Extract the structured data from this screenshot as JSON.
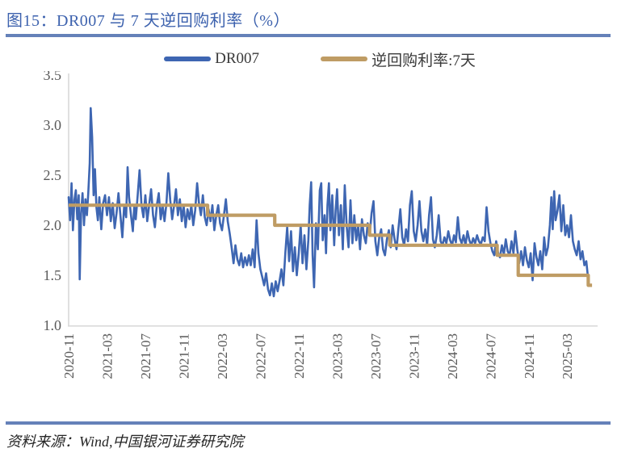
{
  "figure": {
    "title": "图15：DR007 与 7 天逆回购利率（%）",
    "source": "资料来源：Wind,中国银河证券研究院"
  },
  "colors": {
    "title_blue": "#3d62ae",
    "rule_blue": "#6581b9",
    "dr007_blue": "#3e66b2",
    "repo_tan": "#bf9c64",
    "axis_line_gray": "#d9d9d9",
    "tick_label_gray": "#595959"
  },
  "legend": [
    {
      "label": "DR007",
      "color": "#3e66b2"
    },
    {
      "label": "逆回购利率:7天",
      "color": "#bf9c64"
    }
  ],
  "chart_data": {
    "type": "line",
    "title": "DR007 与 7 天逆回购利率（%）",
    "xlabel": "",
    "ylabel": "",
    "grid": false,
    "legend_position": "top",
    "y_axis": {
      "min": 1.0,
      "max": 3.5,
      "ticks": [
        3.5,
        3.0,
        2.5,
        2.0,
        1.5,
        1.0
      ]
    },
    "x_axis": {
      "start": "2020-11",
      "end": "2025-05",
      "tick_labels": [
        "2020-11",
        "2021-03",
        "2021-07",
        "2021-11",
        "2022-03",
        "2022-07",
        "2022-11",
        "2023-03",
        "2023-07",
        "2023-11",
        "2024-03",
        "2024-07",
        "2024-11",
        "2025-03"
      ],
      "tick_month_indices": [
        0,
        4,
        8,
        12,
        16,
        20,
        24,
        28,
        32,
        36,
        40,
        44,
        48,
        52
      ]
    },
    "series": [
      {
        "name": "DR007",
        "color": "#3e66b2",
        "style": "noisy-line",
        "points_month_value": [
          [
            0,
            2.28
          ],
          [
            0.15,
            2.05
          ],
          [
            0.3,
            2.42
          ],
          [
            0.45,
            1.95
          ],
          [
            0.6,
            2.25
          ],
          [
            0.75,
            2.35
          ],
          [
            0.9,
            2.06
          ],
          [
            1.05,
            2.3
          ],
          [
            1.15,
            1.46
          ],
          [
            1.3,
            2.12
          ],
          [
            1.45,
            2.32
          ],
          [
            1.6,
            2.0
          ],
          [
            1.75,
            2.26
          ],
          [
            1.9,
            2.1
          ],
          [
            2.05,
            2.32
          ],
          [
            2.2,
            2.62
          ],
          [
            2.3,
            3.17
          ],
          [
            2.45,
            2.88
          ],
          [
            2.6,
            2.3
          ],
          [
            2.75,
            2.56
          ],
          [
            2.9,
            2.18
          ],
          [
            3.05,
            2.05
          ],
          [
            3.2,
            2.28
          ],
          [
            3.4,
            1.96
          ],
          [
            3.6,
            2.22
          ],
          [
            3.8,
            2.3
          ],
          [
            4.0,
            2.1
          ],
          [
            4.2,
            2.28
          ],
          [
            4.4,
            2.04
          ],
          [
            4.6,
            2.22
          ],
          [
            4.8,
            1.97
          ],
          [
            5.0,
            2.12
          ],
          [
            5.2,
            2.32
          ],
          [
            5.4,
            2.1
          ],
          [
            5.6,
            1.88
          ],
          [
            5.8,
            2.2
          ],
          [
            6.0,
            2.08
          ],
          [
            6.15,
            2.58
          ],
          [
            6.3,
            2.28
          ],
          [
            6.5,
            2.1
          ],
          [
            6.7,
            1.94
          ],
          [
            6.85,
            2.2
          ],
          [
            7.0,
            2.06
          ],
          [
            7.2,
            2.3
          ],
          [
            7.4,
            2.55
          ],
          [
            7.6,
            2.2
          ],
          [
            7.8,
            2.08
          ],
          [
            8.0,
            2.3
          ],
          [
            8.2,
            2.04
          ],
          [
            8.4,
            2.2
          ],
          [
            8.6,
            2.36
          ],
          [
            8.8,
            2.1
          ],
          [
            9.0,
            1.98
          ],
          [
            9.2,
            2.2
          ],
          [
            9.4,
            2.32
          ],
          [
            9.6,
            2.06
          ],
          [
            9.8,
            2.2
          ],
          [
            10.0,
            2.04
          ],
          [
            10.2,
            2.22
          ],
          [
            10.4,
            2.52
          ],
          [
            10.6,
            2.25
          ],
          [
            10.8,
            2.06
          ],
          [
            11.0,
            2.2
          ],
          [
            11.2,
            2.36
          ],
          [
            11.4,
            2.1
          ],
          [
            11.6,
            2.26
          ],
          [
            11.8,
            2.04
          ],
          [
            12.0,
            2.2
          ],
          [
            12.2,
            1.98
          ],
          [
            12.4,
            2.16
          ],
          [
            12.6,
            2.06
          ],
          [
            12.8,
            2.2
          ],
          [
            13.0,
            2.0
          ],
          [
            13.2,
            2.15
          ],
          [
            13.4,
            2.42
          ],
          [
            13.6,
            2.22
          ],
          [
            13.8,
            2.1
          ],
          [
            14.0,
            2.3
          ],
          [
            14.2,
            2.08
          ],
          [
            14.4,
            2.0
          ],
          [
            14.6,
            2.16
          ],
          [
            14.8,
            2.04
          ],
          [
            15.0,
            2.2
          ],
          [
            15.2,
            1.95
          ],
          [
            15.4,
            2.1
          ],
          [
            15.6,
            2.2
          ],
          [
            15.8,
            2.02
          ],
          [
            16.0,
            1.95
          ],
          [
            16.2,
            2.1
          ],
          [
            16.4,
            2.26
          ],
          [
            16.6,
            2.04
          ],
          [
            16.8,
            1.92
          ],
          [
            17.0,
            1.78
          ],
          [
            17.2,
            1.62
          ],
          [
            17.4,
            1.8
          ],
          [
            17.6,
            1.66
          ],
          [
            17.8,
            1.6
          ],
          [
            18.0,
            1.72
          ],
          [
            18.2,
            1.58
          ],
          [
            18.4,
            1.68
          ],
          [
            18.6,
            1.6
          ],
          [
            18.8,
            1.7
          ],
          [
            19.0,
            1.6
          ],
          [
            19.2,
            1.76
          ],
          [
            19.4,
            1.58
          ],
          [
            19.6,
            2.05
          ],
          [
            19.8,
            1.72
          ],
          [
            20.0,
            1.56
          ],
          [
            20.2,
            1.48
          ],
          [
            20.4,
            1.4
          ],
          [
            20.6,
            1.52
          ],
          [
            20.8,
            1.36
          ],
          [
            21.0,
            1.3
          ],
          [
            21.2,
            1.42
          ],
          [
            21.4,
            1.29
          ],
          [
            21.6,
            1.44
          ],
          [
            21.8,
            1.34
          ],
          [
            22.0,
            1.44
          ],
          [
            22.2,
            1.56
          ],
          [
            22.4,
            1.4
          ],
          [
            22.6,
            1.72
          ],
          [
            22.8,
            1.98
          ],
          [
            23.0,
            1.64
          ],
          [
            23.2,
            1.94
          ],
          [
            23.4,
            1.54
          ],
          [
            23.6,
            1.78
          ],
          [
            23.8,
            1.5
          ],
          [
            24.0,
            1.72
          ],
          [
            24.2,
            2.0
          ],
          [
            24.4,
            1.62
          ],
          [
            24.6,
            1.9
          ],
          [
            24.8,
            1.56
          ],
          [
            25.0,
            1.85
          ],
          [
            25.15,
            2.2
          ],
          [
            25.3,
            2.43
          ],
          [
            25.45,
            1.7
          ],
          [
            25.6,
            1.38
          ],
          [
            25.8,
            2.02
          ],
          [
            26.0,
            1.76
          ],
          [
            26.2,
            2.35
          ],
          [
            26.35,
            2.42
          ],
          [
            26.5,
            1.85
          ],
          [
            26.7,
            2.1
          ],
          [
            26.85,
            1.72
          ],
          [
            27.0,
            2.2
          ],
          [
            27.15,
            2.42
          ],
          [
            27.3,
            1.95
          ],
          [
            27.5,
            2.3
          ],
          [
            27.7,
            1.8
          ],
          [
            27.85,
            2.15
          ],
          [
            28.0,
            2.36
          ],
          [
            28.2,
            1.9
          ],
          [
            28.4,
            2.2
          ],
          [
            28.6,
            1.76
          ],
          [
            28.8,
            2.4
          ],
          [
            29.0,
            2.0
          ],
          [
            29.2,
            1.78
          ],
          [
            29.4,
            2.25
          ],
          [
            29.6,
            1.82
          ],
          [
            29.8,
            2.1
          ],
          [
            30.0,
            1.85
          ],
          [
            30.2,
            2.0
          ],
          [
            30.4,
            1.76
          ],
          [
            30.6,
            2.06
          ],
          [
            30.8,
            1.9
          ],
          [
            31.0,
            1.82
          ],
          [
            31.2,
            2.02
          ],
          [
            31.4,
            1.9
          ],
          [
            31.6,
            2.12
          ],
          [
            31.8,
            2.24
          ],
          [
            32.0,
            1.84
          ],
          [
            32.2,
            1.7
          ],
          [
            32.4,
            1.88
          ],
          [
            32.6,
            1.96
          ],
          [
            32.8,
            1.76
          ],
          [
            33.0,
            1.7
          ],
          [
            33.2,
            1.86
          ],
          [
            33.4,
            1.95
          ],
          [
            33.6,
            1.78
          ],
          [
            33.8,
            2.0
          ],
          [
            34.0,
            1.86
          ],
          [
            34.2,
            1.76
          ],
          [
            34.4,
            1.96
          ],
          [
            34.6,
            2.16
          ],
          [
            34.8,
            1.88
          ],
          [
            35.0,
            1.8
          ],
          [
            35.2,
            1.96
          ],
          [
            35.4,
            1.84
          ],
          [
            35.6,
            2.2
          ],
          [
            35.8,
            2.34
          ],
          [
            36.0,
            1.94
          ],
          [
            36.2,
            1.84
          ],
          [
            36.4,
            2.0
          ],
          [
            36.6,
            2.24
          ],
          [
            36.8,
            1.94
          ],
          [
            37.0,
            1.84
          ],
          [
            37.2,
            1.96
          ],
          [
            37.4,
            1.8
          ],
          [
            37.6,
            2.1
          ],
          [
            37.8,
            2.28
          ],
          [
            38.0,
            1.86
          ],
          [
            38.2,
            1.78
          ],
          [
            38.4,
            1.9
          ],
          [
            38.6,
            2.1
          ],
          [
            38.8,
            1.84
          ],
          [
            39.0,
            1.8
          ],
          [
            39.2,
            1.88
          ],
          [
            39.4,
            1.82
          ],
          [
            39.6,
            1.94
          ],
          [
            39.8,
            1.85
          ],
          [
            40.0,
            1.8
          ],
          [
            40.2,
            1.9
          ],
          [
            40.4,
            1.83
          ],
          [
            40.6,
            2.08
          ],
          [
            40.8,
            1.87
          ],
          [
            41.0,
            1.82
          ],
          [
            41.2,
            1.9
          ],
          [
            41.4,
            1.8
          ],
          [
            41.6,
            1.94
          ],
          [
            41.8,
            1.85
          ],
          [
            42.0,
            1.8
          ],
          [
            42.2,
            1.87
          ],
          [
            42.4,
            1.82
          ],
          [
            42.6,
            1.9
          ],
          [
            42.8,
            1.84
          ],
          [
            43.0,
            1.81
          ],
          [
            43.2,
            1.88
          ],
          [
            43.4,
            1.84
          ],
          [
            43.6,
            2.18
          ],
          [
            43.8,
            1.94
          ],
          [
            44.0,
            1.82
          ],
          [
            44.2,
            1.74
          ],
          [
            44.4,
            1.7
          ],
          [
            44.6,
            1.84
          ],
          [
            44.8,
            1.72
          ],
          [
            45.0,
            1.68
          ],
          [
            45.2,
            1.8
          ],
          [
            45.4,
            1.71
          ],
          [
            45.6,
            1.86
          ],
          [
            45.8,
            1.74
          ],
          [
            46.0,
            1.7
          ],
          [
            46.2,
            1.84
          ],
          [
            46.4,
            1.72
          ],
          [
            46.6,
            1.94
          ],
          [
            46.8,
            1.76
          ],
          [
            47.0,
            1.62
          ],
          [
            47.2,
            1.74
          ],
          [
            47.4,
            1.6
          ],
          [
            47.6,
            1.78
          ],
          [
            47.8,
            1.65
          ],
          [
            48.0,
            1.58
          ],
          [
            48.2,
            1.72
          ],
          [
            48.4,
            1.45
          ],
          [
            48.6,
            1.82
          ],
          [
            48.8,
            1.68
          ],
          [
            49.0,
            1.6
          ],
          [
            49.2,
            1.74
          ],
          [
            49.4,
            1.56
          ],
          [
            49.6,
            1.88
          ],
          [
            49.8,
            1.7
          ],
          [
            50.0,
            1.78
          ],
          [
            50.2,
            2.0
          ],
          [
            50.35,
            2.28
          ],
          [
            50.5,
            1.96
          ],
          [
            50.65,
            2.34
          ],
          [
            50.8,
            2.05
          ],
          [
            51.0,
            2.15
          ],
          [
            51.2,
            2.3
          ],
          [
            51.4,
            1.94
          ],
          [
            51.6,
            2.2
          ],
          [
            51.8,
            1.9
          ],
          [
            52.0,
            2.0
          ],
          [
            52.2,
            1.88
          ],
          [
            52.4,
            2.1
          ],
          [
            52.6,
            1.84
          ],
          [
            52.8,
            1.76
          ],
          [
            53.0,
            1.7
          ],
          [
            53.2,
            1.84
          ],
          [
            53.4,
            1.66
          ],
          [
            53.6,
            1.74
          ],
          [
            53.8,
            1.6
          ],
          [
            54.0,
            1.64
          ],
          [
            54.15,
            1.5
          ]
        ]
      },
      {
        "name": "逆回购利率:7天",
        "color": "#bf9c64",
        "style": "step",
        "segments": [
          {
            "rate": 2.2,
            "m0": 0,
            "m1": 14.5,
            "from": "2020-11",
            "to": "2022-01"
          },
          {
            "rate": 2.1,
            "m0": 14.5,
            "m1": 21.5,
            "from": "2022-01",
            "to": "2022-08"
          },
          {
            "rate": 2.0,
            "m0": 21.5,
            "m1": 31.4,
            "from": "2022-08",
            "to": "2023-06"
          },
          {
            "rate": 1.9,
            "m0": 31.4,
            "m1": 33.5,
            "from": "2023-06",
            "to": "2023-08"
          },
          {
            "rate": 1.8,
            "m0": 33.5,
            "m1": 44.7,
            "from": "2023-08",
            "to": "2024-07"
          },
          {
            "rate": 1.7,
            "m0": 44.7,
            "m1": 46.9,
            "from": "2024-07",
            "to": "2024-09"
          },
          {
            "rate": 1.5,
            "m0": 46.9,
            "m1": 54.2,
            "from": "2024-09",
            "to": "2025-05"
          },
          {
            "rate": 1.4,
            "m0": 54.2,
            "m1": 54.6,
            "from": "2025-05",
            "to": "2025-05"
          }
        ]
      }
    ]
  }
}
